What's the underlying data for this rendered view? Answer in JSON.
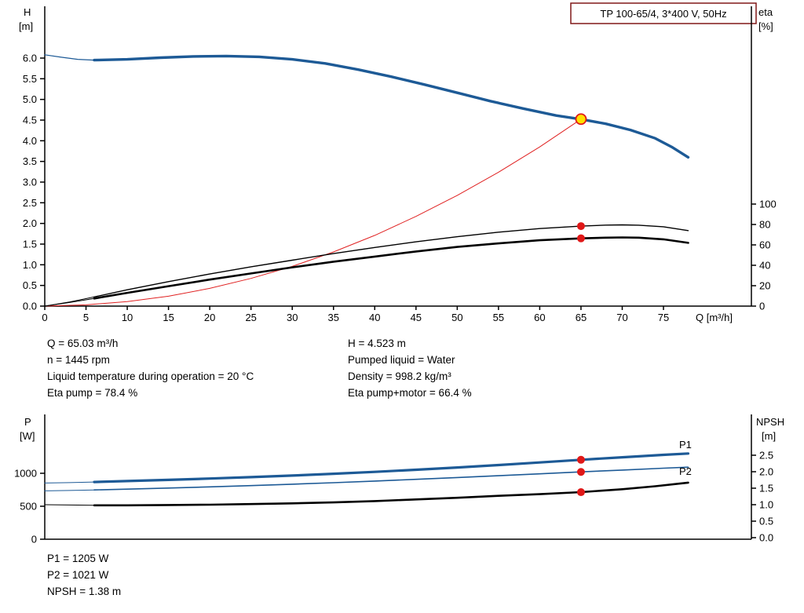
{
  "title_box": {
    "label": "TP 100-65/4, 3*400 V, 50Hz"
  },
  "colors": {
    "curve_blue": "#1d5a96",
    "curve_black": "#000000",
    "curve_red": "#e02222",
    "dot_red": "#e01818",
    "duty_point_fill": "#ffe000",
    "title_box_border": "#801919",
    "axis": "#000000",
    "text": "#000000"
  },
  "info_text": {
    "left": [
      "Q = 65.03 m³/h",
      "n = 1445 rpm",
      "Liquid temperature during operation = 20 °C",
      "Eta pump = 78.4 %"
    ],
    "right": [
      "H = 4.523 m",
      "Pumped liquid = Water",
      "Density = 998.2 kg/m³",
      "Eta pump+motor = 66.4 %"
    ]
  },
  "result_text": [
    "P1 = 1205 W",
    "P2 = 1021 W",
    "NPSH = 1.38 m"
  ],
  "chart_data": [
    {
      "type": "line",
      "title": "TP 100-65/4, 3*400 V, 50Hz",
      "xlabel": "Q [m³/h]",
      "ylabel_left": [
        "H",
        "[m]"
      ],
      "ylabel_right": [
        "eta",
        "[%]"
      ],
      "xlim": [
        0,
        85.7
      ],
      "ylim_left": [
        0,
        7.26
      ],
      "ylim_right": [
        0,
        100
      ],
      "grid": false,
      "legend": false,
      "x_ticks": [
        0,
        5,
        10,
        15,
        20,
        25,
        30,
        35,
        40,
        45,
        50,
        55,
        60,
        65,
        70,
        75
      ],
      "y_ticks_left": [
        0,
        0.5,
        1,
        1.5,
        2,
        2.5,
        3,
        3.5,
        4,
        4.5,
        5,
        5.5,
        6
      ],
      "y_ticks_right": [
        0,
        20,
        40,
        60,
        80,
        100
      ],
      "duty_point": {
        "Q": 65.03,
        "H": 4.523
      },
      "series": [
        {
          "name": "head-curve-lead",
          "axis": "H",
          "color": "#1d5a96",
          "width": 1.2,
          "points": [
            [
              0,
              6.08
            ],
            [
              2,
              6.02
            ],
            [
              4,
              5.97
            ],
            [
              6,
              5.95
            ]
          ]
        },
        {
          "name": "head-curve",
          "axis": "H",
          "color": "#1d5a96",
          "width": 3.4,
          "points": [
            [
              6,
              5.95
            ],
            [
              10,
              5.97
            ],
            [
              14,
              6.01
            ],
            [
              18,
              6.04
            ],
            [
              22,
              6.05
            ],
            [
              26,
              6.03
            ],
            [
              30,
              5.97
            ],
            [
              34,
              5.87
            ],
            [
              38,
              5.72
            ],
            [
              42,
              5.55
            ],
            [
              46,
              5.36
            ],
            [
              50,
              5.16
            ],
            [
              54,
              4.96
            ],
            [
              58,
              4.78
            ],
            [
              62,
              4.61
            ],
            [
              65,
              4.52
            ],
            [
              68,
              4.41
            ],
            [
              71,
              4.26
            ],
            [
              74,
              4.06
            ],
            [
              76,
              3.85
            ],
            [
              78,
              3.6
            ]
          ]
        },
        {
          "name": "system-curve",
          "axis": "H",
          "color": "#e02222",
          "width": 1,
          "points": [
            [
              0,
              0
            ],
            [
              5,
              0.03
            ],
            [
              10,
              0.11
            ],
            [
              15,
              0.24
            ],
            [
              20,
              0.43
            ],
            [
              25,
              0.67
            ],
            [
              30,
              0.96
            ],
            [
              35,
              1.31
            ],
            [
              40,
              1.71
            ],
            [
              45,
              2.17
            ],
            [
              50,
              2.68
            ],
            [
              55,
              3.24
            ],
            [
              60,
              3.85
            ],
            [
              65,
              4.523
            ]
          ]
        },
        {
          "name": "eta-pump-curve-lead",
          "axis": "eta",
          "color": "#000000",
          "width": 1,
          "points": [
            [
              0,
              0
            ],
            [
              3,
              4
            ],
            [
              6,
              9
            ]
          ]
        },
        {
          "name": "eta-pump-curve",
          "axis": "eta",
          "color": "#000000",
          "width": 1.4,
          "points": [
            [
              6,
              9
            ],
            [
              10,
              16
            ],
            [
              15,
              24
            ],
            [
              20,
              31.5
            ],
            [
              25,
              38.5
            ],
            [
              30,
              45
            ],
            [
              35,
              51.5
            ],
            [
              40,
              57.5
            ],
            [
              45,
              63
            ],
            [
              50,
              68
            ],
            [
              55,
              72.5
            ],
            [
              60,
              76
            ],
            [
              65,
              78.4
            ],
            [
              68,
              79.4
            ],
            [
              70,
              79.6
            ],
            [
              72,
              79.3
            ],
            [
              75,
              77.8
            ],
            [
              78,
              74
            ]
          ]
        },
        {
          "name": "eta-pump-motor-curve-lead",
          "axis": "eta",
          "color": "#000000",
          "width": 1,
          "points": [
            [
              0,
              0
            ],
            [
              3,
              3.5
            ],
            [
              6,
              7.5
            ]
          ]
        },
        {
          "name": "eta-pump-motor-curve",
          "axis": "eta",
          "color": "#000000",
          "width": 2.6,
          "points": [
            [
              6,
              7.5
            ],
            [
              10,
              13
            ],
            [
              15,
              19.5
            ],
            [
              20,
              26
            ],
            [
              25,
              32
            ],
            [
              30,
              38
            ],
            [
              35,
              43.5
            ],
            [
              40,
              48.5
            ],
            [
              45,
              53.5
            ],
            [
              50,
              58
            ],
            [
              55,
              61.5
            ],
            [
              60,
              64.5
            ],
            [
              65,
              66.4
            ],
            [
              68,
              67.1
            ],
            [
              70,
              67.3
            ],
            [
              72,
              67.1
            ],
            [
              75,
              65.5
            ],
            [
              78,
              62
            ]
          ]
        }
      ],
      "markers": [
        {
          "name": "duty-point",
          "axis": "H",
          "x": 65,
          "y": 4.523,
          "style": "duty"
        },
        {
          "name": "eta-pump-point",
          "axis": "eta",
          "x": 65,
          "y": 78.4,
          "style": "dot"
        },
        {
          "name": "eta-pump-motor-point",
          "axis": "eta",
          "x": 65,
          "y": 66.4,
          "style": "dot"
        }
      ],
      "labels": []
    },
    {
      "type": "line",
      "title": "",
      "xlabel": "",
      "ylabel_left": [
        "P",
        "[W]"
      ],
      "ylabel_right": [
        "NPSH",
        "[m]"
      ],
      "xlim": [
        0,
        85.7
      ],
      "ylim_left": [
        0,
        1900
      ],
      "ylim_right": [
        0,
        3.75
      ],
      "grid": false,
      "legend": false,
      "x_ticks": [],
      "y_ticks_left": [
        0,
        500,
        1000
      ],
      "y_ticks_right": [
        0,
        0.5,
        1,
        1.5,
        2,
        2.5
      ],
      "series": [
        {
          "name": "p1-curve-lead",
          "axis": "W",
          "color": "#1d5a96",
          "width": 1,
          "points": [
            [
              0,
              852
            ],
            [
              3,
              858
            ],
            [
              6,
              868
            ]
          ]
        },
        {
          "name": "p1-curve",
          "axis": "W",
          "color": "#1d5a96",
          "width": 3.2,
          "points": [
            [
              6,
              868
            ],
            [
              10,
              882
            ],
            [
              15,
              900
            ],
            [
              20,
              920
            ],
            [
              25,
              942
            ],
            [
              30,
              966
            ],
            [
              35,
              993
            ],
            [
              40,
              1022
            ],
            [
              45,
              1054
            ],
            [
              50,
              1088
            ],
            [
              55,
              1125
            ],
            [
              60,
              1164
            ],
            [
              65,
              1205
            ],
            [
              70,
              1243
            ],
            [
              75,
              1280
            ],
            [
              78,
              1300
            ]
          ]
        },
        {
          "name": "p2-curve-lead",
          "axis": "W",
          "color": "#1d5a96",
          "width": 1,
          "points": [
            [
              0,
              733
            ],
            [
              3,
              739
            ],
            [
              6,
              748
            ]
          ]
        },
        {
          "name": "p2-curve",
          "axis": "W",
          "color": "#1d5a96",
          "width": 1.6,
          "points": [
            [
              6,
              748
            ],
            [
              10,
              760
            ],
            [
              15,
              776
            ],
            [
              20,
              794
            ],
            [
              25,
              813
            ],
            [
              30,
              834
            ],
            [
              35,
              857
            ],
            [
              40,
              882
            ],
            [
              45,
              908
            ],
            [
              50,
              936
            ],
            [
              55,
              963
            ],
            [
              60,
              992
            ],
            [
              65,
              1021
            ],
            [
              70,
              1049
            ],
            [
              75,
              1077
            ],
            [
              78,
              1093
            ]
          ]
        },
        {
          "name": "npsh-curve-lead",
          "axis": "NPSH",
          "color": "#000000",
          "width": 1,
          "points": [
            [
              0,
              1.0
            ],
            [
              3,
              0.99
            ],
            [
              6,
              0.98
            ]
          ]
        },
        {
          "name": "npsh-curve",
          "axis": "NPSH",
          "color": "#000000",
          "width": 2.6,
          "points": [
            [
              6,
              0.98
            ],
            [
              10,
              0.98
            ],
            [
              15,
              0.99
            ],
            [
              20,
              1.0
            ],
            [
              25,
              1.02
            ],
            [
              30,
              1.04
            ],
            [
              35,
              1.07
            ],
            [
              40,
              1.11
            ],
            [
              45,
              1.16
            ],
            [
              50,
              1.21
            ],
            [
              55,
              1.27
            ],
            [
              60,
              1.32
            ],
            [
              65,
              1.38
            ],
            [
              70,
              1.47
            ],
            [
              74,
              1.56
            ],
            [
              77,
              1.64
            ],
            [
              78,
              1.67
            ]
          ]
        }
      ],
      "markers": [
        {
          "name": "p1-point",
          "axis": "W",
          "x": 65,
          "y": 1205,
          "style": "dot"
        },
        {
          "name": "p2-point",
          "axis": "W",
          "x": 65,
          "y": 1021,
          "style": "dot"
        },
        {
          "name": "npsh-point",
          "axis": "NPSH",
          "x": 65,
          "y": 1.38,
          "style": "dot"
        }
      ],
      "labels": [
        {
          "text": "P1",
          "x": 865,
          "y": 571,
          "color": "#1d5a96"
        },
        {
          "text": "P2",
          "x": 865,
          "y": 605,
          "color": "#1d5a96"
        }
      ]
    }
  ]
}
